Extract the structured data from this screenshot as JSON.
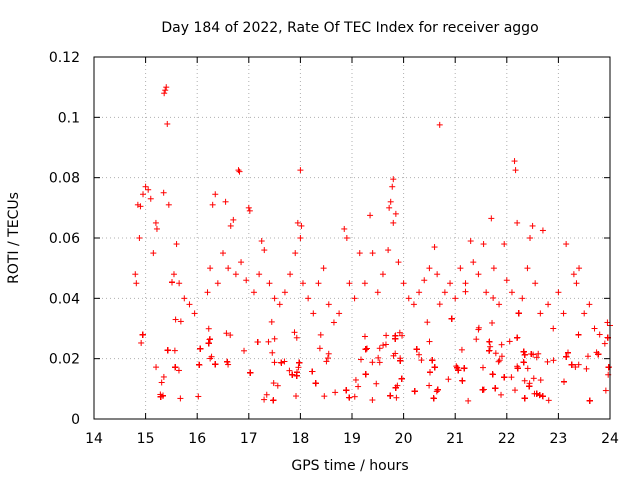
{
  "chart_data": {
    "type": "scatter",
    "title": "Day 184 of 2022, Rate Of TEC Index for receiver aggo",
    "xlabel": "GPS time / hours",
    "ylabel": "ROTI / TECUs",
    "xlim": [
      14,
      24
    ],
    "ylim": [
      0,
      0.12
    ],
    "xticks": [
      "14",
      "15",
      "16",
      "17",
      "18",
      "19",
      "20",
      "21",
      "22",
      "23",
      "24"
    ],
    "yticks": [
      "0",
      "0.02",
      "0.04",
      "0.06",
      "0.08",
      "0.1",
      "0.12"
    ],
    "grid": true,
    "marker": "plus",
    "color": "#ff0000",
    "series": [
      {
        "points": [
          [
            15.38,
            0.109
          ],
          [
            15.4,
            0.11
          ],
          [
            15.36,
            0.108
          ],
          [
            15.42,
            0.0978
          ],
          [
            20.7,
            0.0975
          ],
          [
            16.8,
            0.0825
          ],
          [
            16.82,
            0.082
          ],
          [
            18.0,
            0.0825
          ],
          [
            22.15,
            0.0855
          ],
          [
            22.17,
            0.0825
          ],
          [
            19.8,
            0.0795
          ],
          [
            19.78,
            0.077
          ],
          [
            15.0,
            0.077
          ],
          [
            15.05,
            0.076
          ],
          [
            14.95,
            0.0745
          ],
          [
            15.35,
            0.075
          ],
          [
            14.85,
            0.071
          ],
          [
            14.9,
            0.0705
          ],
          [
            15.1,
            0.073
          ],
          [
            15.45,
            0.071
          ],
          [
            16.35,
            0.0745
          ],
          [
            16.3,
            0.071
          ],
          [
            16.55,
            0.072
          ],
          [
            17.0,
            0.07
          ],
          [
            17.02,
            0.069
          ],
          [
            17.95,
            0.065
          ],
          [
            18.02,
            0.064
          ],
          [
            18.0,
            0.06
          ],
          [
            19.75,
            0.072
          ],
          [
            19.72,
            0.07
          ],
          [
            19.85,
            0.068
          ],
          [
            19.35,
            0.0675
          ],
          [
            19.8,
            0.065
          ],
          [
            21.7,
            0.0665
          ],
          [
            22.5,
            0.064
          ],
          [
            22.45,
            0.06
          ],
          [
            22.2,
            0.065
          ],
          [
            22.7,
            0.0625
          ],
          [
            23.15,
            0.058
          ],
          [
            20.6,
            0.057
          ],
          [
            21.55,
            0.058
          ],
          [
            21.95,
            0.058
          ],
          [
            21.3,
            0.059
          ],
          [
            18.85,
            0.063
          ],
          [
            18.9,
            0.06
          ],
          [
            16.65,
            0.064
          ],
          [
            16.7,
            0.066
          ],
          [
            17.25,
            0.059
          ],
          [
            17.3,
            0.056
          ],
          [
            15.6,
            0.058
          ],
          [
            15.2,
            0.065
          ],
          [
            15.22,
            0.063
          ],
          [
            14.88,
            0.06
          ],
          [
            14.8,
            0.048
          ],
          [
            14.82,
            0.045
          ],
          [
            15.15,
            0.055
          ],
          [
            15.55,
            0.048
          ],
          [
            15.65,
            0.045
          ],
          [
            15.75,
            0.04
          ],
          [
            15.85,
            0.038
          ],
          [
            15.95,
            0.035
          ],
          [
            16.2,
            0.042
          ],
          [
            16.25,
            0.05
          ],
          [
            16.4,
            0.045
          ],
          [
            16.5,
            0.055
          ],
          [
            16.6,
            0.05
          ],
          [
            16.75,
            0.048
          ],
          [
            16.85,
            0.052
          ],
          [
            16.95,
            0.046
          ],
          [
            17.1,
            0.042
          ],
          [
            17.2,
            0.048
          ],
          [
            17.4,
            0.045
          ],
          [
            17.5,
            0.04
          ],
          [
            17.6,
            0.038
          ],
          [
            17.7,
            0.042
          ],
          [
            17.8,
            0.048
          ],
          [
            17.9,
            0.055
          ],
          [
            18.05,
            0.045
          ],
          [
            18.15,
            0.04
          ],
          [
            18.25,
            0.035
          ],
          [
            18.35,
            0.045
          ],
          [
            18.45,
            0.05
          ],
          [
            18.55,
            0.038
          ],
          [
            18.65,
            0.032
          ],
          [
            18.75,
            0.035
          ],
          [
            18.95,
            0.045
          ],
          [
            19.05,
            0.04
          ],
          [
            19.15,
            0.055
          ],
          [
            19.25,
            0.045
          ],
          [
            19.4,
            0.055
          ],
          [
            19.5,
            0.042
          ],
          [
            19.6,
            0.048
          ],
          [
            19.7,
            0.056
          ],
          [
            19.9,
            0.052
          ],
          [
            20.0,
            0.045
          ],
          [
            20.1,
            0.04
          ],
          [
            20.2,
            0.038
          ],
          [
            20.3,
            0.042
          ],
          [
            20.4,
            0.046
          ],
          [
            20.5,
            0.05
          ],
          [
            20.65,
            0.048
          ],
          [
            20.8,
            0.042
          ],
          [
            20.9,
            0.045
          ],
          [
            21.0,
            0.04
          ],
          [
            21.1,
            0.05
          ],
          [
            21.2,
            0.045
          ],
          [
            21.35,
            0.052
          ],
          [
            21.45,
            0.048
          ],
          [
            21.6,
            0.042
          ],
          [
            21.75,
            0.05
          ],
          [
            21.85,
            0.038
          ],
          [
            22.0,
            0.046
          ],
          [
            22.1,
            0.042
          ],
          [
            22.3,
            0.04
          ],
          [
            22.4,
            0.05
          ],
          [
            22.55,
            0.045
          ],
          [
            22.65,
            0.035
          ],
          [
            22.8,
            0.038
          ],
          [
            22.9,
            0.03
          ],
          [
            23.0,
            0.042
          ],
          [
            23.1,
            0.035
          ],
          [
            23.3,
            0.048
          ],
          [
            23.35,
            0.045
          ],
          [
            23.4,
            0.05
          ],
          [
            23.5,
            0.035
          ],
          [
            23.6,
            0.038
          ],
          [
            23.7,
            0.03
          ],
          [
            23.8,
            0.028
          ],
          [
            23.9,
            0.025
          ],
          [
            23.95,
            0.032
          ],
          [
            24.0,
            0.031
          ]
        ]
      }
    ]
  }
}
